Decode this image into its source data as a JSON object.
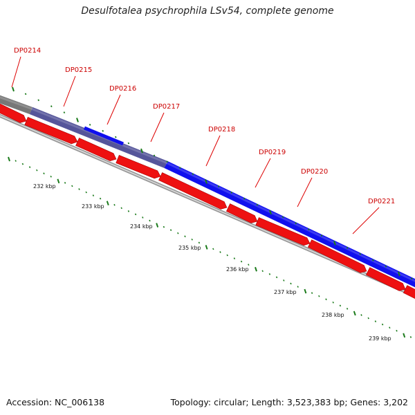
{
  "title": "Desulfotalea psychrophila LSv54, complete genome",
  "footer": {
    "accession": "Accession: NC_006138",
    "topology": "Topology: circular; Length: 3,523,383 bp; Genes: 3,202"
  },
  "genes": [
    {
      "label": "DP0214"
    },
    {
      "label": "DP0215"
    },
    {
      "label": "DP0216"
    },
    {
      "label": "DP0217"
    },
    {
      "label": "DP0218"
    },
    {
      "label": "DP0219"
    },
    {
      "label": "DP0220"
    },
    {
      "label": "DP0221"
    }
  ],
  "kbp_ticks": [
    "232 kbp",
    "233 kbp",
    "234 kbp",
    "235 kbp",
    "236 kbp",
    "237 kbp",
    "238 kbp",
    "239 kbp"
  ],
  "colors": {
    "gene_label": "#cc0000",
    "forward_band_blue": "#1010ee",
    "forward_band_purple": "#55559a",
    "forward_band_gray": "#777777",
    "reverse_cds": "#ee1111",
    "tick_green": "#1a7a1a",
    "backbone": "#888888"
  }
}
